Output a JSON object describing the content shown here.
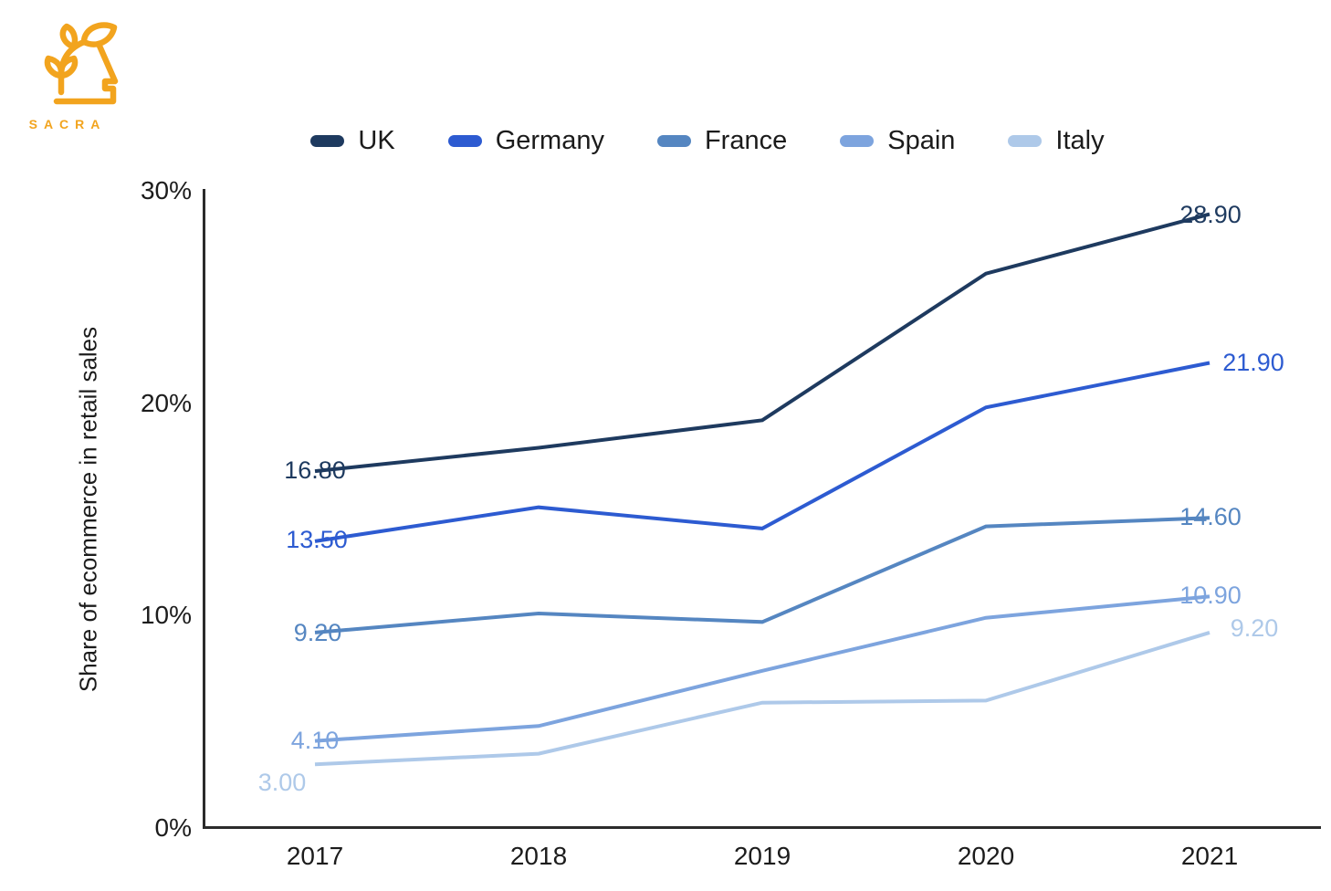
{
  "brand": {
    "name": "SACRA",
    "color": "#F2A41E",
    "logo_icon": "head-with-sprout-icon"
  },
  "chart_data": {
    "type": "line",
    "title": "",
    "ylabel": "Share of ecommerce in retail sales",
    "categories": [
      "2017",
      "2018",
      "2019",
      "2020",
      "2021"
    ],
    "ylim": [
      0,
      30
    ],
    "yticks": {
      "values": [
        30,
        20,
        10,
        0
      ],
      "labels": [
        "30%",
        "20%",
        "10%",
        "0%"
      ]
    },
    "grid": false,
    "legend_position": "top",
    "series": [
      {
        "name": "UK",
        "color": "#1e3a5f",
        "values": [
          16.8,
          17.9,
          19.2,
          26.1,
          28.9
        ],
        "first_label": "16.80",
        "last_label": "28.90"
      },
      {
        "name": "Germany",
        "color": "#2d5bd1",
        "values": [
          13.5,
          15.1,
          14.1,
          19.8,
          21.9
        ],
        "first_label": "13.50",
        "last_label": "21.90"
      },
      {
        "name": "France",
        "color": "#5586c1",
        "values": [
          9.2,
          10.1,
          9.7,
          14.2,
          14.6
        ],
        "first_label": "9.20",
        "last_label": "14.60"
      },
      {
        "name": "Spain",
        "color": "#7da4de",
        "values": [
          4.1,
          4.8,
          7.4,
          9.9,
          10.9
        ],
        "first_label": "4.10",
        "last_label": "10.90"
      },
      {
        "name": "Italy",
        "color": "#aec9e9",
        "values": [
          3.0,
          3.5,
          5.9,
          6.0,
          9.2
        ],
        "first_label": "3.00",
        "last_label": "9.20"
      }
    ]
  }
}
